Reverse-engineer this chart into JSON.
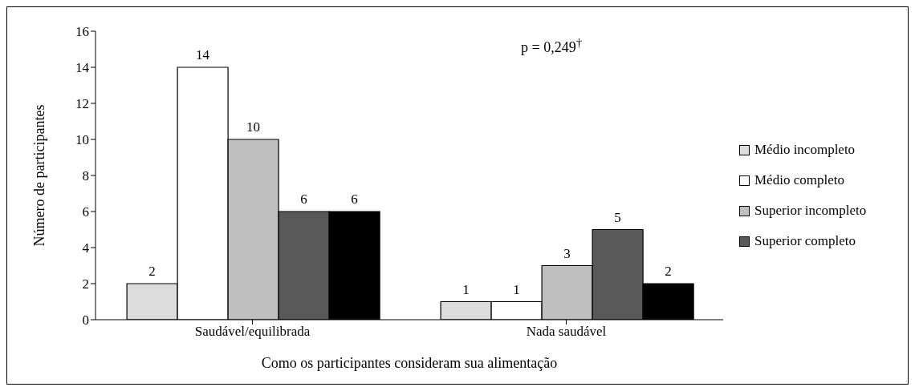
{
  "chart_data": {
    "type": "bar",
    "xlabel": "Como os participantes consideram sua alimentação",
    "ylabel": "Número de participantes",
    "categories": [
      "Saudável/equilibrada",
      "Nada saudável"
    ],
    "series": [
      {
        "name": "Médio incompleto",
        "color": "#dcdcdc",
        "values": [
          2,
          1
        ]
      },
      {
        "name": "Médio completo",
        "color": "#ffffff",
        "values": [
          14,
          1
        ]
      },
      {
        "name": "Superior incompleto",
        "color": "#bfbfbf",
        "values": [
          10,
          3
        ]
      },
      {
        "name": "Superior completo",
        "color": "#595959",
        "values": [
          6,
          5
        ]
      },
      {
        "color": "#000000",
        "values": [
          6,
          2
        ]
      }
    ],
    "ylim": [
      0,
      16
    ],
    "yticks": [
      0,
      2,
      4,
      6,
      8,
      10,
      12,
      14,
      16
    ],
    "legend": "right",
    "data_labels": true,
    "annotations": [
      "p = 0,249$^{†}$"
    ]
  }
}
